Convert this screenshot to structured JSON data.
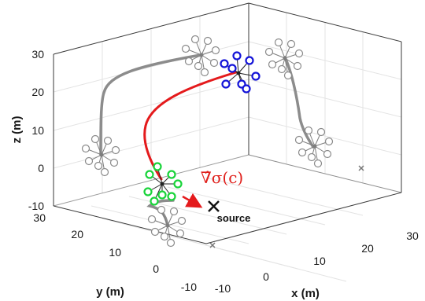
{
  "chart_data": {
    "type": "line",
    "x_axis": {
      "label": "x (m)",
      "ticks": [
        "-10",
        "0",
        "10",
        "20",
        "30"
      ],
      "range": [
        -10,
        30
      ]
    },
    "y_axis": {
      "label": "y (m)",
      "ticks": [
        "-10",
        "0",
        "10",
        "20",
        "30"
      ],
      "range": [
        -10,
        30
      ]
    },
    "z_axis": {
      "label": "z (m)",
      "ticks": [
        "-10",
        "0",
        "10",
        "20",
        "30"
      ],
      "range": [
        -10,
        30
      ]
    },
    "grid": true,
    "annotations": {
      "gradient": "∇̂σ(c)",
      "source": "source"
    },
    "colors": {
      "trajectory_gray": "#8c8c8c",
      "trajectory_red": "#e41a1c",
      "formation_green": "#19d43a",
      "formation_blue": "#1414d8",
      "gradient_arrow": "#e41a1c"
    }
  }
}
